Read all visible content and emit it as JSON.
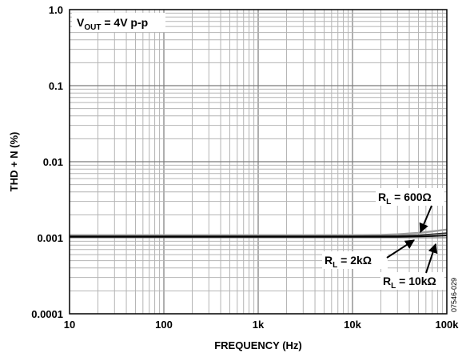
{
  "chart_data": {
    "type": "line",
    "xlabel": "FREQUENCY (Hz)",
    "ylabel": "THD + N (%)",
    "x_scale": "log",
    "y_scale": "log",
    "xlim": [
      10,
      100000
    ],
    "ylim": [
      0.0001,
      1.0
    ],
    "grid": true,
    "x_ticks": [
      "10",
      "100",
      "1k",
      "10k",
      "100k"
    ],
    "y_ticks": [
      "1.0",
      "0.1",
      "0.01",
      "0.001",
      "0.0001"
    ],
    "condition": {
      "main": "V",
      "sub": "OUT",
      "rest": " = 4V p-p"
    },
    "series": [
      {
        "name": "R_L = 600Ω",
        "label": {
          "main": "R",
          "sub": "L",
          "rest": " = 600Ω"
        },
        "color": "#a0a0a0",
        "x": [
          10,
          100,
          1000,
          10000,
          20000,
          30000,
          50000,
          70000,
          100000
        ],
        "y": [
          0.00108,
          0.00108,
          0.00108,
          0.00108,
          0.00109,
          0.00111,
          0.00116,
          0.00121,
          0.00128
        ]
      },
      {
        "name": "R_L = 2kΩ",
        "label": {
          "main": "R",
          "sub": "L",
          "rest": " = 2kΩ"
        },
        "color": "#333333",
        "x": [
          10,
          100,
          1000,
          10000,
          30000,
          50000,
          70000,
          100000
        ],
        "y": [
          0.00105,
          0.00105,
          0.00105,
          0.00105,
          0.00106,
          0.00108,
          0.00111,
          0.00115
        ]
      },
      {
        "name": "R_L = 10kΩ",
        "label": {
          "main": "R",
          "sub": "L",
          "rest": " = 10kΩ"
        },
        "color": "#000000",
        "x": [
          10,
          100,
          1000,
          10000,
          30000,
          50000,
          70000,
          100000
        ],
        "y": [
          0.00103,
          0.00103,
          0.00103,
          0.00103,
          0.00103,
          0.00104,
          0.00105,
          0.00107
        ]
      }
    ],
    "figure_code": "07546-029"
  }
}
